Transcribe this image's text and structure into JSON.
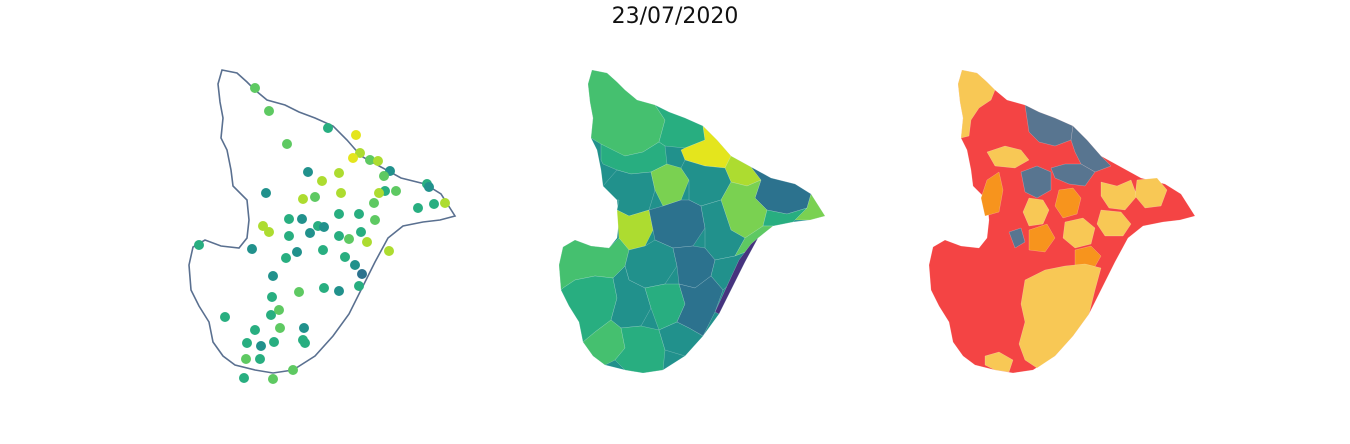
{
  "figure": {
    "title": "23/07/2020"
  },
  "colors": {
    "outline": "#5a7090",
    "viridis": [
      "#46337e",
      "#3b528b",
      "#2c728e",
      "#21918c",
      "#28ae80",
      "#5ec962",
      "#addc30",
      "#e4e51d"
    ],
    "risk": {
      "red": "#f44444",
      "orange": "#f7941d",
      "yellow": "#f8c855",
      "slate": "#587590"
    }
  }
}
